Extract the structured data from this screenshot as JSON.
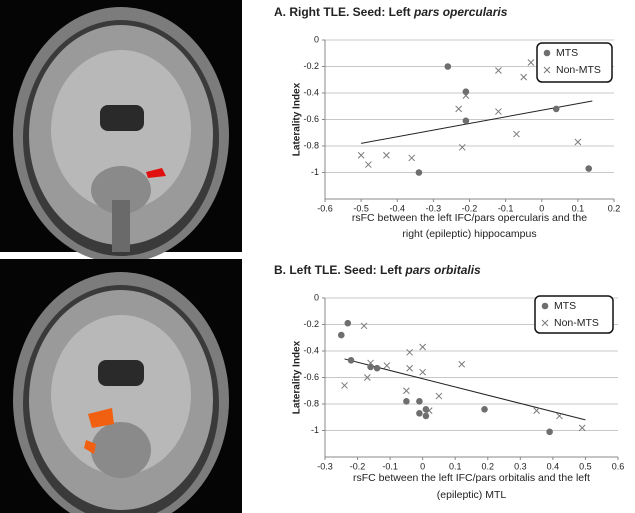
{
  "chart_data": [
    {
      "type": "scatter",
      "title": "A. Right TLE. Seed: Left",
      "title_italic": "pars opercularis",
      "ylabel": "Laterality Index",
      "xlabel": [
        "rsFC between the left IFC/pars opercularis and the",
        "right (epileptic) hippocampus"
      ],
      "xlim": [
        -0.6,
        0.2
      ],
      "xticks": [
        -0.6,
        -0.5,
        -0.4,
        -0.3,
        -0.2,
        -0.1,
        0,
        0.1,
        0.2
      ],
      "ylim": [
        -1.2,
        0
      ],
      "yticks": [
        0,
        -0.2,
        -0.4,
        -0.6,
        -0.8,
        -1
      ],
      "grid": true,
      "legend": "upper right",
      "series": [
        {
          "name": "MTS",
          "marker": "circle",
          "color": "#6e6e6e",
          "x": [
            -0.26,
            -0.21,
            -0.21,
            -0.34,
            0.04,
            0.13
          ],
          "values": [
            -0.2,
            -0.39,
            -0.61,
            -1,
            -0.52,
            -0.97
          ]
        },
        {
          "name": "Non-MTS",
          "marker": "x",
          "color": "#7a7a7a",
          "x": [
            -0.5,
            -0.48,
            -0.43,
            -0.36,
            -0.23,
            -0.21,
            -0.22,
            -0.12,
            -0.12,
            -0.07,
            -0.05,
            -0.03,
            0.1
          ],
          "values": [
            -0.87,
            -0.94,
            -0.87,
            -0.89,
            -0.52,
            -0.42,
            -0.81,
            -0.23,
            -0.54,
            -0.71,
            -0.28,
            -0.17,
            -0.77
          ]
        }
      ],
      "trendline": {
        "x": [
          -0.5,
          0.14
        ],
        "y": [
          -0.78,
          -0.46
        ]
      }
    },
    {
      "type": "scatter",
      "title": "B. Left TLE. Seed: Left",
      "title_italic": "pars orbitalis",
      "ylabel": "Laterality Index",
      "xlabel": [
        "rsFC between the left IFC/pars orbitalis and the left",
        "(epileptic) MTL"
      ],
      "xlim": [
        -0.3,
        0.6
      ],
      "xticks": [
        -0.3,
        -0.2,
        -0.1,
        0,
        0.1,
        0.2,
        0.3,
        0.4,
        0.5,
        0.6
      ],
      "ylim": [
        -1.2,
        0
      ],
      "yticks": [
        0,
        -0.2,
        -0.4,
        -0.6,
        -0.8,
        -1
      ],
      "grid": true,
      "legend": "upper right",
      "series": [
        {
          "name": "MTS",
          "marker": "circle",
          "color": "#6e6e6e",
          "x": [
            -0.25,
            -0.23,
            -0.22,
            -0.16,
            -0.14,
            -0.05,
            -0.01,
            -0.01,
            0.01,
            0.01,
            0.19,
            0.39
          ],
          "values": [
            -0.28,
            -0.19,
            -0.47,
            -0.52,
            -0.53,
            -0.78,
            -0.78,
            -0.87,
            -0.89,
            -0.84,
            -0.84,
            -1.01
          ]
        },
        {
          "name": "Non-MTS",
          "marker": "x",
          "color": "#7a7a7a",
          "x": [
            -0.24,
            -0.18,
            -0.16,
            -0.17,
            -0.11,
            -0.04,
            -0.04,
            -0.05,
            0,
            0,
            0.02,
            0.05,
            0.12,
            0.35,
            0.42,
            0.49
          ],
          "values": [
            -0.66,
            -0.21,
            -0.49,
            -0.6,
            -0.51,
            -0.41,
            -0.53,
            -0.7,
            -0.37,
            -0.56,
            -0.85,
            -0.74,
            -0.5,
            -0.85,
            -0.89,
            -0.98
          ]
        }
      ],
      "trendline": {
        "x": [
          -0.24,
          0.5
        ],
        "y": [
          -0.46,
          -0.92
        ]
      }
    }
  ]
}
